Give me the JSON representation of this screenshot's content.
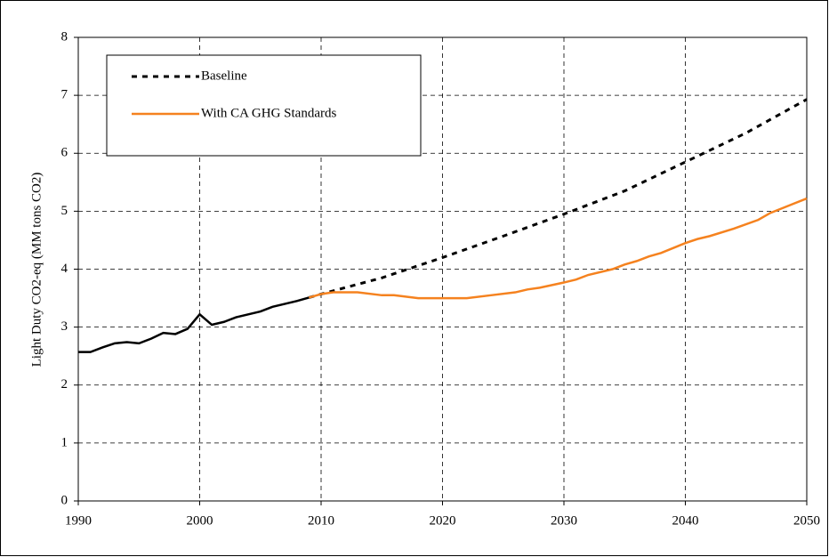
{
  "chart_data": {
    "type": "line",
    "ylabel": "Light Duty CO2-eq (MM tons CO2)",
    "xlim": [
      1990,
      2050
    ],
    "xticks": [
      1990,
      2000,
      2010,
      2020,
      2030,
      2040,
      2050
    ],
    "ylim": [
      0,
      8
    ],
    "yticks": [
      0,
      1,
      2,
      3,
      4,
      5,
      6,
      7,
      8
    ],
    "grid": true,
    "legend": "upper left",
    "series": [
      {
        "color": "#000000",
        "linestyle": "solid",
        "x": [
          1990,
          1991,
          1992,
          1993,
          1994,
          1995,
          1996,
          1997,
          1998,
          1999,
          2000,
          2001,
          2002,
          2003,
          2004,
          2005,
          2006,
          2007,
          2008,
          2009
        ],
        "values": [
          2.57,
          2.57,
          2.65,
          2.72,
          2.74,
          2.72,
          2.8,
          2.9,
          2.88,
          2.97,
          3.22,
          3.04,
          3.09,
          3.17,
          3.22,
          3.27,
          3.35,
          3.4,
          3.45,
          3.51
        ]
      },
      {
        "name": "Baseline",
        "color": "#000000",
        "linestyle": "dotted",
        "x": [
          2009,
          2010,
          2015,
          2020,
          2025,
          2030,
          2035,
          2040,
          2045,
          2050
        ],
        "values": [
          3.51,
          3.57,
          3.85,
          4.2,
          4.57,
          4.95,
          5.35,
          5.85,
          6.35,
          6.93
        ]
      },
      {
        "name": "With CA GHG Standards",
        "color": "#f5821f",
        "linestyle": "solid",
        "x": [
          2009,
          2010,
          2011,
          2013,
          2015,
          2016,
          2018,
          2022,
          2024,
          2026,
          2027,
          2028,
          2030,
          2031,
          2032,
          2034,
          2035,
          2036,
          2037,
          2038,
          2040,
          2041,
          2042,
          2044,
          2046,
          2047,
          2050
        ],
        "values": [
          3.51,
          3.57,
          3.6,
          3.6,
          3.55,
          3.55,
          3.5,
          3.5,
          3.55,
          3.6,
          3.65,
          3.68,
          3.77,
          3.82,
          3.9,
          4.0,
          4.08,
          4.14,
          4.22,
          4.28,
          4.45,
          4.52,
          4.57,
          4.7,
          4.85,
          4.97,
          5.22
        ]
      }
    ]
  }
}
